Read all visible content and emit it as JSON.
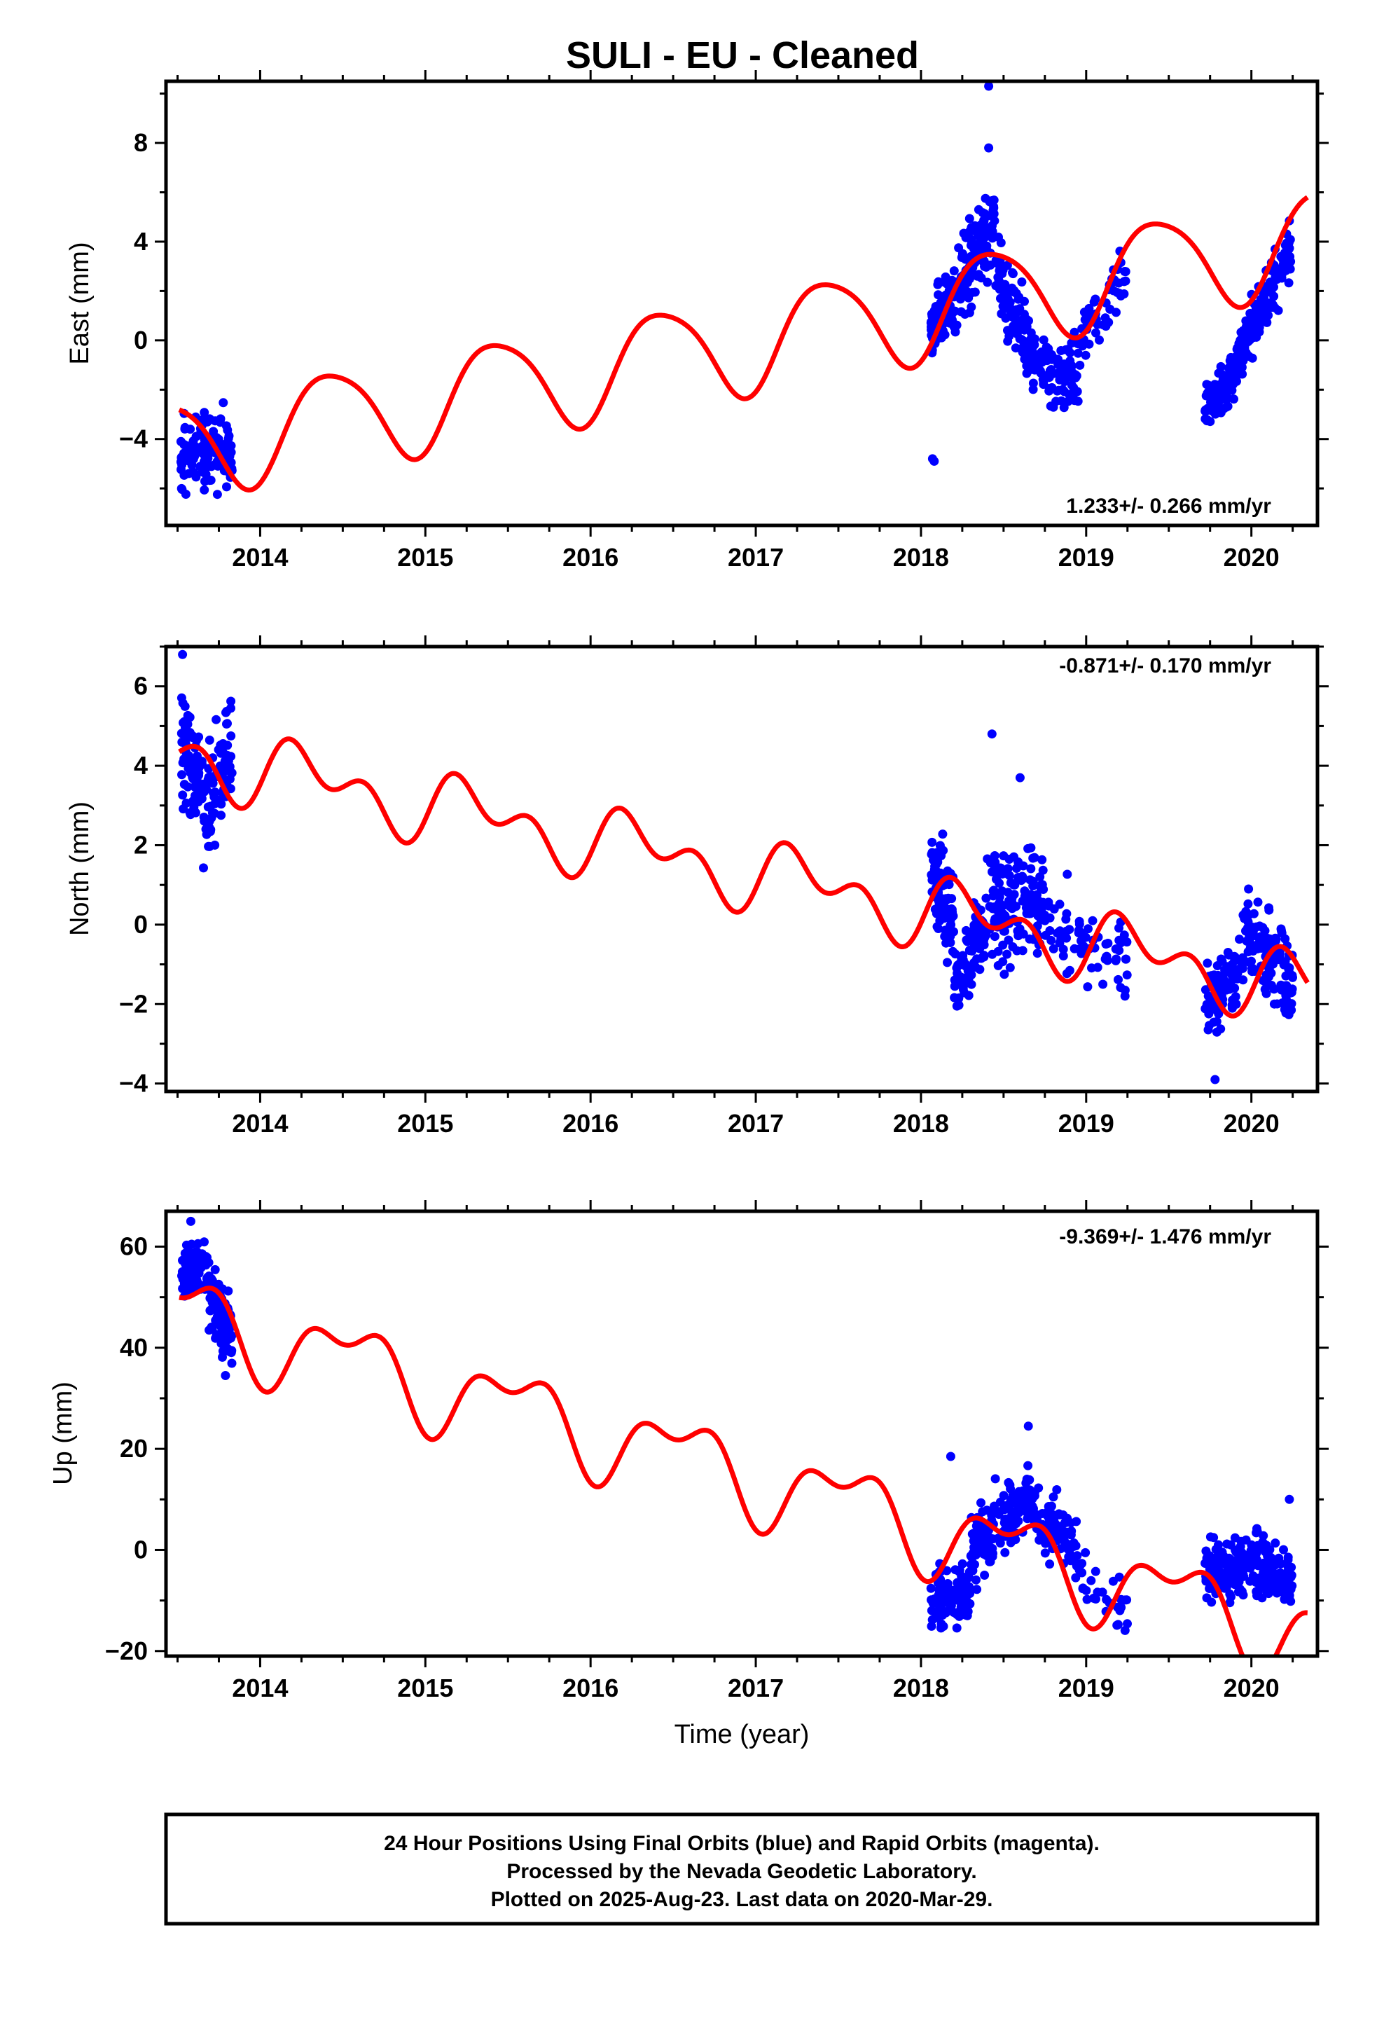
{
  "title": "SULI  - EU - Cleaned",
  "x_axis_label": "Time (year)",
  "colors": {
    "data": "#0000ff",
    "model": "#ff0000",
    "frame": "#000000"
  },
  "footer": {
    "line1": "24 Hour Positions Using Final Orbits (blue) and Rapid Orbits (magenta).",
    "line2": "Processed by the Nevada Geodetic Laboratory.",
    "line3": "Plotted on 2025-Aug-23. Last data on 2020-Mar-29."
  },
  "chart_data": [
    {
      "type": "scatter",
      "id": "east",
      "ylabel": "East (mm)",
      "rate_label": "1.233+/- 0.266 mm/yr",
      "xlim": [
        2013.43,
        2020.4
      ],
      "ylim": [
        -7.5,
        10.5
      ],
      "xticks": [
        2014,
        2015,
        2016,
        2017,
        2018,
        2019,
        2020
      ],
      "yticks": [
        -4,
        0,
        4,
        8
      ],
      "model": {
        "offset": -4.3,
        "slope": 1.233,
        "amplitude": 2.0,
        "phase": 0.18,
        "amplitude2": 0.3
      },
      "series": [
        {
          "segments": [
            {
              "x": [
                2013.52,
                2013.83
              ],
              "center": [
                -4.5,
                -4.6
              ],
              "spread": 1.4,
              "n": 150
            },
            {
              "x": [
                2018.06,
                2018.25
              ],
              "center": [
                0.5,
                2.5
              ],
              "spread": 1.5,
              "n": 110
            },
            {
              "x": [
                2018.25,
                2018.45
              ],
              "center": [
                2.5,
                5.0
              ],
              "spread": 1.7,
              "n": 110
            },
            {
              "x": [
                2018.45,
                2018.7
              ],
              "center": [
                3.0,
                -1.0
              ],
              "spread": 1.6,
              "n": 110
            },
            {
              "x": [
                2018.7,
                2018.96
              ],
              "center": [
                -1.0,
                -1.5
              ],
              "spread": 1.4,
              "n": 80
            },
            {
              "x": [
                2018.96,
                2019.25
              ],
              "center": [
                0.0,
                3.0
              ],
              "spread": 1.5,
              "n": 50
            },
            {
              "x": [
                2019.72,
                2019.9
              ],
              "center": [
                -2.8,
                -1.5
              ],
              "spread": 0.9,
              "n": 80
            },
            {
              "x": [
                2019.9,
                2020.24
              ],
              "center": [
                -1.0,
                3.8
              ],
              "spread": 1.1,
              "n": 160
            }
          ],
          "extra": [
            {
              "x": 2018.08,
              "y": -4.9
            },
            {
              "x": 2018.07,
              "y": -4.8
            },
            {
              "x": 2018.41,
              "y": 10.3
            },
            {
              "x": 2018.41,
              "y": 7.8
            }
          ]
        }
      ]
    },
    {
      "type": "scatter",
      "id": "north",
      "ylabel": "North (mm)",
      "rate_label": "-0.871+/- 0.170 mm/yr",
      "xlim": [
        2013.43,
        2020.4
      ],
      "ylim": [
        -4.2,
        7.0
      ],
      "xticks": [
        2014,
        2015,
        2016,
        2017,
        2018,
        2019,
        2020
      ],
      "yticks": [
        -4,
        -2,
        0,
        2,
        4,
        6
      ],
      "model": {
        "offset": 4.3,
        "slope": -0.871,
        "amplitude": 0.6,
        "phase": 0.05,
        "amplitude2": 0.55
      },
      "series": [
        {
          "segments": [
            {
              "x": [
                2013.52,
                2013.65
              ],
              "center": [
                4.5,
                3.5
              ],
              "spread": 1.4,
              "n": 70
            },
            {
              "x": [
                2013.65,
                2013.83
              ],
              "center": [
                2.5,
                4.5
              ],
              "spread": 1.5,
              "n": 80
            },
            {
              "x": [
                2018.06,
                2018.2
              ],
              "center": [
                1.5,
                0.0
              ],
              "spread": 1.2,
              "n": 90
            },
            {
              "x": [
                2018.2,
                2018.4
              ],
              "center": [
                -1.5,
                0.0
              ],
              "spread": 1.0,
              "n": 90
            },
            {
              "x": [
                2018.4,
                2018.75
              ],
              "center": [
                0.5,
                0.5
              ],
              "spread": 1.3,
              "n": 150
            },
            {
              "x": [
                2018.75,
                2019.25
              ],
              "center": [
                0.0,
                -1.0
              ],
              "spread": 1.1,
              "n": 70
            },
            {
              "x": [
                2019.72,
                2019.95
              ],
              "center": [
                -2.0,
                -1.0
              ],
              "spread": 0.9,
              "n": 90
            },
            {
              "x": [
                2019.95,
                2020.25
              ],
              "center": [
                0.0,
                -1.5
              ],
              "spread": 1.0,
              "n": 140
            }
          ],
          "extra": [
            {
              "x": 2013.53,
              "y": 6.8
            },
            {
              "x": 2018.43,
              "y": 4.8
            },
            {
              "x": 2018.6,
              "y": 3.7
            },
            {
              "x": 2019.78,
              "y": -3.9
            }
          ]
        }
      ]
    },
    {
      "type": "scatter",
      "id": "up",
      "ylabel": "Up (mm)",
      "rate_label": "-9.369+/- 1.476 mm/yr",
      "xlim": [
        2013.43,
        2020.4
      ],
      "ylim": [
        -21,
        67
      ],
      "xticks": [
        2014,
        2015,
        2016,
        2017,
        2018,
        2019,
        2020
      ],
      "yticks": [
        -20,
        0,
        20,
        40,
        60
      ],
      "model": {
        "offset": 47.0,
        "slope": -9.369,
        "amplitude": 7.0,
        "phase": 0.3,
        "amplitude2": 4.0
      },
      "series": [
        {
          "segments": [
            {
              "x": [
                2013.52,
                2013.68
              ],
              "center": [
                54.0,
                56.0
              ],
              "spread": 5.0,
              "n": 80
            },
            {
              "x": [
                2013.68,
                2013.83
              ],
              "center": [
                52.0,
                42.0
              ],
              "spread": 7.0,
              "n": 80
            },
            {
              "x": [
                2018.06,
                2018.3
              ],
              "center": [
                -10.0,
                -8.0
              ],
              "spread": 6.0,
              "n": 120
            },
            {
              "x": [
                2018.3,
                2018.6
              ],
              "center": [
                0.0,
                9.0
              ],
              "spread": 7.0,
              "n": 120
            },
            {
              "x": [
                2018.6,
                2018.95
              ],
              "center": [
                10.0,
                0.0
              ],
              "spread": 6.0,
              "n": 120
            },
            {
              "x": [
                2018.95,
                2019.25
              ],
              "center": [
                -5.0,
                -12.0
              ],
              "spread": 5.0,
              "n": 30
            },
            {
              "x": [
                2019.72,
                2020.0
              ],
              "center": [
                -5.0,
                -3.0
              ],
              "spread": 6.0,
              "n": 130
            },
            {
              "x": [
                2020.0,
                2020.25
              ],
              "center": [
                -3.0,
                -7.0
              ],
              "spread": 6.0,
              "n": 110
            }
          ],
          "extra": [
            {
              "x": 2013.58,
              "y": 65.0
            },
            {
              "x": 2013.79,
              "y": 34.5
            },
            {
              "x": 2018.65,
              "y": 24.5
            },
            {
              "x": 2018.18,
              "y": 18.5
            },
            {
              "x": 2020.23,
              "y": 10.0
            }
          ]
        }
      ]
    }
  ]
}
